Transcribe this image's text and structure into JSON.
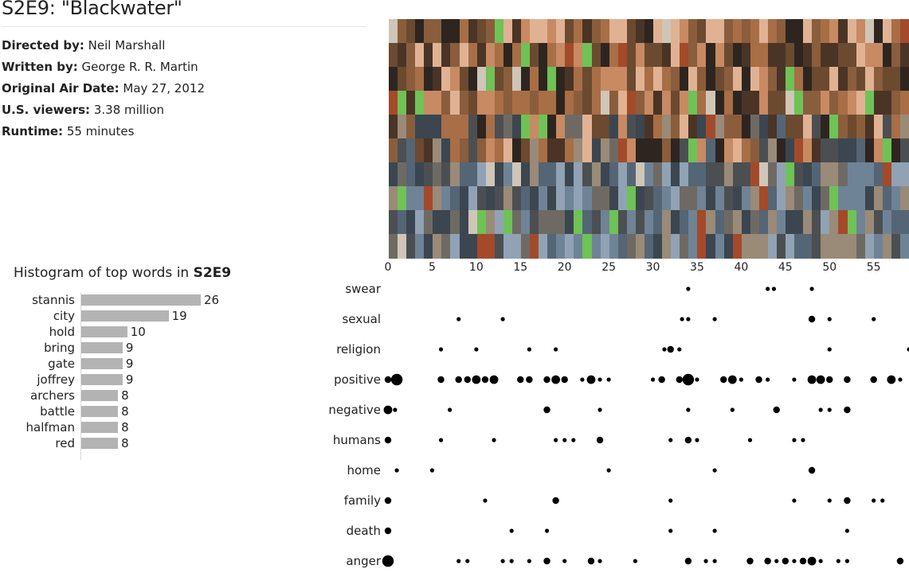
{
  "episode": {
    "title": "S2E9: \"Blackwater\"",
    "directed_by_label": "Directed by:",
    "directed_by": "Neil Marshall",
    "written_by_label": "Written by:",
    "written_by": "George R. R. Martin",
    "air_date_label": "Original Air Date:",
    "air_date": "May 27, 2012",
    "viewers_label": "U.S. viewers:",
    "viewers": "3.38 million",
    "runtime_label": "Runtime:",
    "runtime": "55 minutes"
  },
  "chart_data": [
    {
      "type": "heatmap",
      "x_range": [
        0,
        59
      ],
      "rows": 10,
      "columns": 59,
      "palette": [
        "#2e2520",
        "#4a3426",
        "#6b4a30",
        "#8a5d3c",
        "#a86e46",
        "#c78a62",
        "#e0b293",
        "#9a8a78",
        "#6e6a63",
        "#4b4f52",
        "#3b4650",
        "#546575",
        "#6f8396",
        "#90a2b4",
        "#1f2426",
        "#6fc255",
        "#a34a2a",
        "#cfc6b8"
      ]
    },
    {
      "type": "bar",
      "title_prefix": "Histogram of top words in ",
      "title_episode": "S2E9",
      "categories": [
        "stannis",
        "city",
        "hold",
        "bring",
        "gate",
        "joffrey",
        "archers",
        "battle",
        "halfman",
        "red"
      ],
      "values": [
        26,
        19,
        10,
        9,
        9,
        9,
        8,
        8,
        8,
        8
      ],
      "orientation": "horizontal",
      "bar_color": "#b3b3b3"
    },
    {
      "type": "scatter",
      "x_ticks": [
        "0",
        "5",
        "10",
        "15",
        "20",
        "25",
        "30",
        "35",
        "40",
        "45",
        "50",
        "55"
      ],
      "x_tick_values": [
        0,
        5,
        10,
        15,
        20,
        25,
        30,
        35,
        40,
        45,
        50,
        55
      ],
      "x_range": [
        0,
        59
      ],
      "categories": [
        "swear",
        "sexual",
        "religion",
        "positive",
        "negative",
        "humans",
        "home",
        "family",
        "death",
        "anger"
      ],
      "series": [
        {
          "category": "swear",
          "points": [
            [
              34,
              1
            ],
            [
              43,
              1
            ],
            [
              43.7,
              1
            ],
            [
              48,
              1
            ]
          ]
        },
        {
          "category": "sexual",
          "points": [
            [
              8,
              1
            ],
            [
              13,
              1
            ],
            [
              33.3,
              1
            ],
            [
              34,
              1
            ],
            [
              37,
              1
            ],
            [
              48,
              2
            ],
            [
              50,
              1
            ],
            [
              55,
              1
            ]
          ]
        },
        {
          "category": "religion",
          "points": [
            [
              6,
              1
            ],
            [
              10,
              1
            ],
            [
              16,
              1
            ],
            [
              19,
              1
            ],
            [
              31.3,
              1
            ],
            [
              32,
              2
            ],
            [
              33,
              1
            ],
            [
              50,
              1
            ],
            [
              59,
              1
            ]
          ]
        },
        {
          "category": "positive",
          "points": [
            [
              0,
              2
            ],
            [
              1,
              4
            ],
            [
              6,
              2
            ],
            [
              8,
              2
            ],
            [
              9,
              2
            ],
            [
              10,
              3
            ],
            [
              11,
              2
            ],
            [
              12,
              3
            ],
            [
              15,
              2
            ],
            [
              16,
              2
            ],
            [
              18,
              2
            ],
            [
              19,
              3
            ],
            [
              20,
              2
            ],
            [
              22,
              1
            ],
            [
              23,
              3
            ],
            [
              24,
              1
            ],
            [
              25,
              1
            ],
            [
              30,
              1
            ],
            [
              31,
              2
            ],
            [
              33,
              2
            ],
            [
              34,
              4
            ],
            [
              35,
              1
            ],
            [
              38,
              2
            ],
            [
              39,
              3
            ],
            [
              40,
              1
            ],
            [
              42,
              2
            ],
            [
              43,
              1
            ],
            [
              46,
              1
            ],
            [
              48,
              3
            ],
            [
              49,
              3
            ],
            [
              50,
              2
            ],
            [
              52,
              2
            ],
            [
              55,
              2
            ],
            [
              57,
              3
            ],
            [
              58,
              1
            ]
          ]
        },
        {
          "category": "negative",
          "points": [
            [
              0,
              3
            ],
            [
              0.8,
              1
            ],
            [
              7,
              1
            ],
            [
              18,
              2
            ],
            [
              24,
              1
            ],
            [
              34,
              1
            ],
            [
              39,
              1
            ],
            [
              44,
              2
            ],
            [
              49,
              1
            ],
            [
              50,
              1
            ],
            [
              52,
              2
            ]
          ]
        },
        {
          "category": "humans",
          "points": [
            [
              0,
              2
            ],
            [
              6,
              1
            ],
            [
              12,
              1
            ],
            [
              19,
              1
            ],
            [
              20,
              1
            ],
            [
              21,
              1
            ],
            [
              24,
              2
            ],
            [
              32,
              1
            ],
            [
              34,
              2
            ],
            [
              35,
              1
            ],
            [
              41,
              1
            ],
            [
              46,
              1
            ],
            [
              47,
              1
            ]
          ]
        },
        {
          "category": "home",
          "points": [
            [
              1,
              1
            ],
            [
              5,
              1
            ],
            [
              25,
              1
            ],
            [
              37,
              1
            ],
            [
              48,
              2
            ]
          ]
        },
        {
          "category": "family",
          "points": [
            [
              0,
              2
            ],
            [
              11,
              1
            ],
            [
              19,
              2
            ],
            [
              32,
              1
            ],
            [
              46,
              1
            ],
            [
              50,
              1
            ],
            [
              52,
              2
            ],
            [
              55,
              1
            ],
            [
              56,
              1
            ]
          ]
        },
        {
          "category": "death",
          "points": [
            [
              0,
              2
            ],
            [
              14,
              1
            ],
            [
              18,
              1
            ],
            [
              32,
              1
            ],
            [
              37,
              1
            ],
            [
              52,
              1
            ]
          ]
        },
        {
          "category": "anger",
          "points": [
            [
              0,
              4
            ],
            [
              8,
              1
            ],
            [
              9,
              1
            ],
            [
              13,
              1
            ],
            [
              14,
              1
            ],
            [
              16,
              1
            ],
            [
              18,
              2
            ],
            [
              20,
              1
            ],
            [
              23,
              2
            ],
            [
              24,
              1
            ],
            [
              28,
              1
            ],
            [
              34,
              2
            ],
            [
              36,
              1
            ],
            [
              37,
              1
            ],
            [
              41,
              2
            ],
            [
              43,
              2
            ],
            [
              44,
              1
            ],
            [
              45,
              2
            ],
            [
              46,
              1
            ],
            [
              47,
              2
            ],
            [
              48,
              3
            ],
            [
              49,
              1
            ],
            [
              51,
              1
            ],
            [
              52,
              1
            ],
            [
              58,
              2
            ]
          ]
        }
      ]
    }
  ]
}
